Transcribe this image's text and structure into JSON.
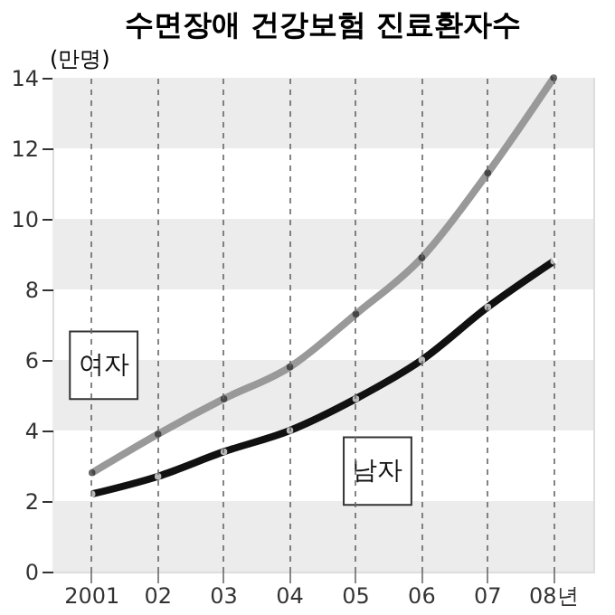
{
  "chart_data": {
    "type": "line",
    "title": "수면장애 건강보험 진료환자수",
    "ylabel": "(만명)",
    "categories": [
      "2001",
      "02",
      "03",
      "04",
      "05",
      "06",
      "07",
      "08년"
    ],
    "series": [
      {
        "name": "여자",
        "color": "#999999",
        "values": [
          2.8,
          3.9,
          4.9,
          5.8,
          7.3,
          8.9,
          11.3,
          14.0
        ]
      },
      {
        "name": "남자",
        "color": "#111111",
        "values": [
          2.2,
          2.7,
          3.4,
          4.0,
          4.9,
          6.0,
          7.5,
          8.8
        ]
      }
    ],
    "ylim": [
      0,
      14
    ],
    "yticks": [
      0,
      2,
      4,
      6,
      8,
      10,
      12,
      14
    ],
    "bands": [
      {
        "axis": "y",
        "from": 0,
        "to": 2,
        "color": "#ececec"
      },
      {
        "axis": "y",
        "from": 4,
        "to": 6,
        "color": "#ececec"
      },
      {
        "axis": "y",
        "from": 8,
        "to": 10,
        "color": "#ececec"
      },
      {
        "axis": "y",
        "from": 12,
        "to": 14,
        "color": "#ececec"
      }
    ],
    "grid": "x",
    "marker": "circle",
    "line_style": "solid"
  }
}
